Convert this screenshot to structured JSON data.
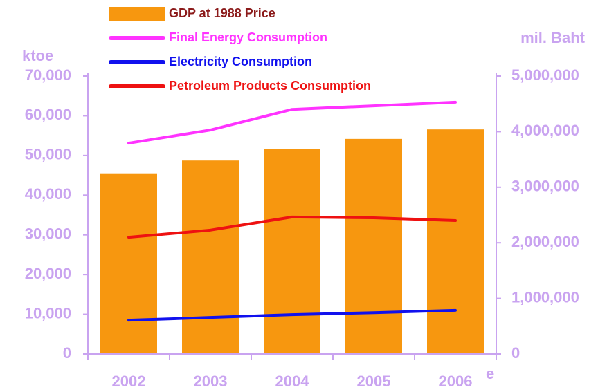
{
  "chart_data": {
    "type": "bar_line",
    "y_label": "ktoe",
    "y2_label": "mil. Baht",
    "annotation": "e",
    "categories": [
      "2002",
      "2003",
      "2004",
      "2005",
      "2006"
    ],
    "series": [
      {
        "name": "GDP at 1988 Price",
        "type": "bar",
        "axis": "y2",
        "color": "#f7970f",
        "values": [
          3250000,
          3480000,
          3690000,
          3870000,
          4040000
        ]
      },
      {
        "name": "Final Energy Consumption",
        "type": "line",
        "color": "#ff33ff",
        "values": [
          53100,
          56400,
          61600,
          62500,
          63400
        ]
      },
      {
        "name": "Electricity Consumption",
        "type": "line",
        "color": "#1111ee",
        "values": [
          8500,
          9200,
          9900,
          10400,
          11000
        ]
      },
      {
        "name": "Petroleum Products Consumption",
        "type": "line",
        "color": "#ee1111",
        "values": [
          29400,
          31200,
          34500,
          34300,
          33600
        ]
      }
    ],
    "legend_text_colors": [
      "#8b1a1a",
      "#ff33ff",
      "#1111ee",
      "#ee1111"
    ],
    "ylim": [
      0,
      70000
    ],
    "yticks": [
      0,
      {
        "value": 10000,
        "label": "10,000"
      },
      {
        "value": 20000,
        "label": "20,000"
      },
      {
        "value": 30000,
        "label": "30,000"
      },
      {
        "value": 40000,
        "label": "40,000"
      },
      {
        "value": 50000,
        "label": "50,000"
      },
      {
        "value": 60000,
        "label": "60,000"
      },
      {
        "value": 70000,
        "label": "70,000"
      }
    ],
    "y2lim": [
      0,
      5000000
    ],
    "y2ticks": [
      0,
      {
        "value": 1000000,
        "label": "1,000,000"
      },
      {
        "value": 2000000,
        "label": "2,000,000"
      },
      {
        "value": 3000000,
        "label": "3,000,000"
      },
      {
        "value": 4000000,
        "label": "4,000,000"
      },
      {
        "value": 5000000,
        "label": "5,000,000"
      }
    ],
    "axis_color": "#c9a3f0"
  }
}
